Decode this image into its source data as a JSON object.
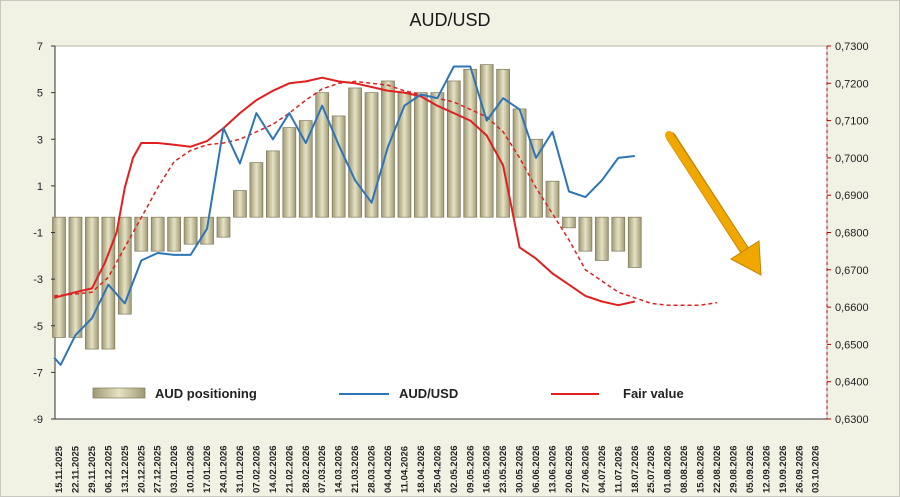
{
  "chart_data": {
    "type": "bar+line",
    "title": "AUD/USD",
    "left_axis": {
      "ylim": [
        -9,
        7
      ],
      "ticks": [
        7,
        5,
        3,
        1,
        -1,
        -3,
        -5,
        -7,
        -9
      ]
    },
    "right_axis": {
      "ylim": [
        0.63,
        0.73
      ],
      "ticks": [
        "0,7300",
        "0,7200",
        "0,7100",
        "0,7000",
        "0,6900",
        "0,6800",
        "0,6700",
        "0,6600",
        "0,6500",
        "0,6400",
        "0,6300"
      ]
    },
    "x_labels": [
      "15.11.2025",
      "22.11.2025",
      "29.11.2025",
      "06.12.2025",
      "13.12.2025",
      "20.12.2025",
      "27.12.2025",
      "03.01.2026",
      "10.01.2026",
      "17.01.2026",
      "24.01.2026",
      "31.01.2026",
      "07.02.2026",
      "14.02.2026",
      "21.02.2026",
      "28.02.2026",
      "07.03.2026",
      "14.03.2026",
      "21.03.2026",
      "28.03.2026",
      "04.04.2026",
      "11.04.2026",
      "18.04.2026",
      "25.04.2026",
      "02.05.2026",
      "09.05.2026",
      "16.05.2026",
      "23.05.2026",
      "30.05.2026",
      "06.06.2026",
      "13.06.2026",
      "20.06.2026",
      "27.06.2026",
      "04.07.2026",
      "11.07.2026",
      "18.07.2026",
      "25.07.2026",
      "01.08.2026",
      "08.08.2026",
      "15.08.2026",
      "22.08.2026",
      "29.08.2026",
      "05.09.2026",
      "12.09.2026",
      "19.09.2026",
      "26.09.2026",
      "03.10.2026"
    ],
    "legend": [
      {
        "label": "AUD positioning",
        "kind": "bar"
      },
      {
        "label": "AUD/USD",
        "kind": "line",
        "color": "#2e75b6"
      },
      {
        "label": "Fair value",
        "kind": "line",
        "color": "#e02020"
      }
    ],
    "series": [
      {
        "name": "AUD positioning",
        "axis": "left",
        "values": [
          -5.5,
          -5.5,
          -6,
          -6,
          -4.5,
          -1.8,
          -1.8,
          -1.8,
          -1.5,
          -1.5,
          -1.2,
          0.8,
          2,
          2.5,
          3.5,
          3.8,
          5,
          4,
          5.2,
          5,
          5.5,
          5,
          5,
          5,
          5.5,
          6,
          6.2,
          6,
          4.3,
          3,
          1.2,
          -0.8,
          -1.8,
          -2.2,
          -1.8,
          -2.5
        ]
      },
      {
        "name": "AUD/USD",
        "axis": "right",
        "x_index": [
          -0.3,
          0.1,
          1,
          2,
          3,
          4,
          5,
          6,
          7,
          8,
          9,
          10,
          11,
          12,
          13,
          14,
          15,
          16,
          17,
          18,
          19,
          20,
          21,
          22,
          23,
          24,
          25,
          26,
          27,
          28,
          29,
          30,
          31,
          32,
          33,
          34,
          35
        ],
        "values": [
          0.6465,
          0.6445,
          0.6525,
          0.657,
          0.666,
          0.661,
          0.6725,
          0.6745,
          0.674,
          0.674,
          0.681,
          0.708,
          0.6985,
          0.712,
          0.705,
          0.712,
          0.704,
          0.714,
          0.7035,
          0.694,
          0.688,
          0.703,
          0.714,
          0.717,
          0.716,
          0.7245,
          0.7245,
          0.71,
          0.716,
          0.713,
          0.7,
          0.707,
          0.691,
          0.6895,
          0.694,
          0.7,
          0.7005
        ]
      },
      {
        "name": "Fair value",
        "axis": "right",
        "x_index": [
          -0.3,
          1,
          2,
          2.8,
          3.5,
          4,
          4.5,
          5,
          6,
          7,
          8,
          9,
          10,
          11,
          12,
          13,
          14,
          15,
          16,
          17,
          18,
          19,
          20,
          21,
          22,
          23,
          24,
          25,
          26,
          27,
          28,
          29,
          30,
          31,
          32,
          33,
          34,
          35
        ],
        "values": [
          0.6625,
          0.664,
          0.665,
          0.672,
          0.68,
          0.692,
          0.7,
          0.704,
          0.704,
          0.7035,
          0.703,
          0.7045,
          0.708,
          0.712,
          0.7155,
          0.718,
          0.72,
          0.7205,
          0.7215,
          0.7205,
          0.72,
          0.719,
          0.718,
          0.7175,
          0.7165,
          0.714,
          0.712,
          0.71,
          0.706,
          0.698,
          0.676,
          0.673,
          0.669,
          0.666,
          0.663,
          0.6615,
          0.6605,
          0.6615
        ]
      },
      {
        "name": "Fair value (dashed)",
        "axis": "right",
        "x_index": [
          -0.3,
          1,
          2,
          3,
          4,
          5,
          6,
          7,
          8,
          9,
          10,
          11,
          12,
          13,
          14,
          15,
          16,
          17,
          18,
          19,
          20,
          21,
          22,
          23,
          24,
          25,
          26,
          27,
          28,
          29,
          30,
          31,
          32,
          33,
          34,
          35,
          36,
          37,
          38,
          39,
          40
        ],
        "values": [
          0.663,
          0.6635,
          0.664,
          0.668,
          0.676,
          0.684,
          0.692,
          0.699,
          0.702,
          0.7035,
          0.704,
          0.705,
          0.707,
          0.709,
          0.712,
          0.7155,
          0.7185,
          0.72,
          0.7205,
          0.72,
          0.7195,
          0.718,
          0.717,
          0.716,
          0.715,
          0.713,
          0.711,
          0.707,
          0.7,
          0.692,
          0.685,
          0.678,
          0.67,
          0.667,
          0.664,
          0.6625,
          0.661,
          0.6605,
          0.6605,
          0.6605,
          0.6612
        ]
      }
    ],
    "grid": false,
    "annotation": {
      "kind": "arrow",
      "color": "#f0a800",
      "direction": "down-right"
    }
  }
}
